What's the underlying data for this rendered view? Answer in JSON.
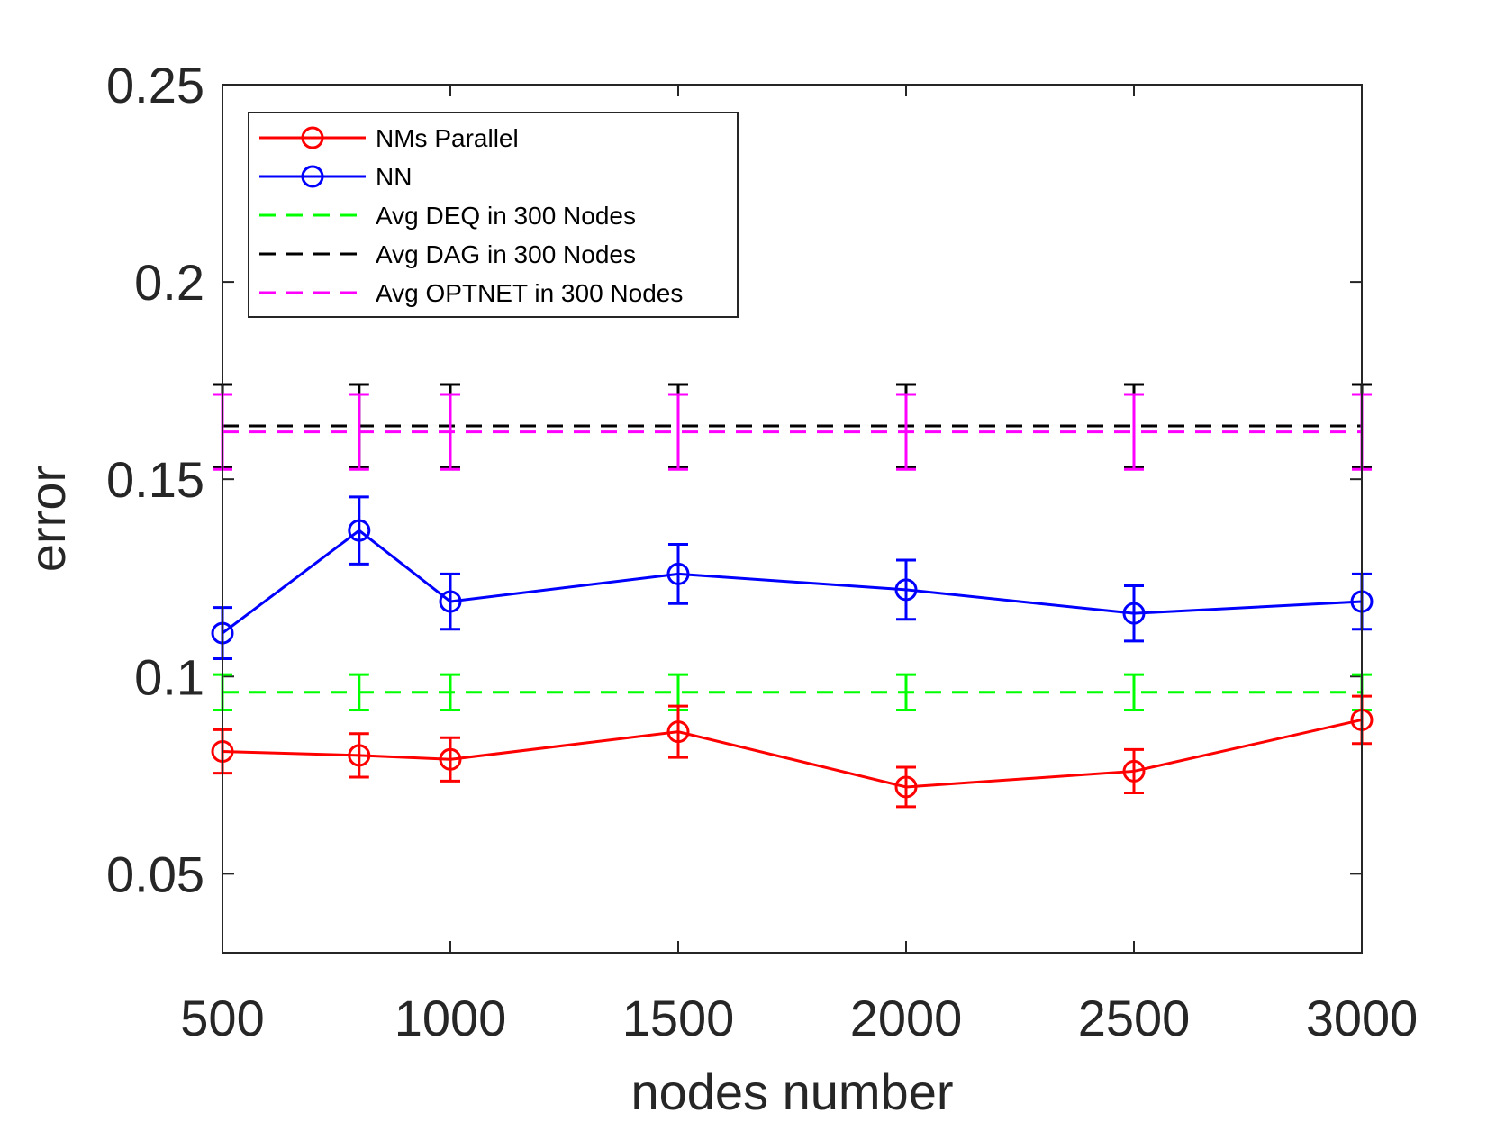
{
  "chart_data": {
    "type": "line",
    "title": "",
    "xlabel": "nodes number",
    "ylabel": "error",
    "xlim": [
      500,
      3000
    ],
    "ylim": [
      0.03,
      0.25
    ],
    "xticks": [
      500,
      1000,
      1500,
      2000,
      2500,
      3000
    ],
    "xtick_labels": [
      "500",
      "1000",
      "1500",
      "2000",
      "2500",
      "3000"
    ],
    "yticks": [
      0.05,
      0.1,
      0.15,
      0.2,
      0.25
    ],
    "ytick_labels": [
      "0.05",
      "0.1",
      "0.15",
      "0.2",
      "0.25"
    ],
    "legend_position": "top-left",
    "grid": false,
    "series": [
      {
        "name": "NMs Parallel",
        "color": "#ff0000",
        "style": "solid",
        "marker": "circle",
        "x": [
          500,
          800,
          1000,
          1500,
          2000,
          2500,
          3000
        ],
        "values": [
          0.081,
          0.08,
          0.079,
          0.086,
          0.072,
          0.076,
          0.089
        ],
        "error": [
          0.0055,
          0.0055,
          0.0055,
          0.0065,
          0.005,
          0.0055,
          0.006
        ]
      },
      {
        "name": "NN",
        "color": "#0000ff",
        "style": "solid",
        "marker": "circle",
        "x": [
          500,
          800,
          1000,
          1500,
          2000,
          2500,
          3000
        ],
        "values": [
          0.111,
          0.137,
          0.119,
          0.126,
          0.122,
          0.116,
          0.119
        ],
        "error": [
          0.0065,
          0.0085,
          0.007,
          0.0075,
          0.0075,
          0.007,
          0.007
        ]
      },
      {
        "name": "Avg DEQ in 300 Nodes",
        "color": "#00ff00",
        "style": "dashed",
        "marker": "none",
        "x": [
          500,
          800,
          1000,
          1500,
          2000,
          2500,
          3000
        ],
        "values": [
          0.096,
          0.096,
          0.096,
          0.096,
          0.096,
          0.096,
          0.096
        ],
        "error": [
          0.0045,
          0.0045,
          0.0045,
          0.0045,
          0.0045,
          0.0045,
          0.0045
        ]
      },
      {
        "name": "Avg DAG in 300 Nodes",
        "color": "#000000",
        "style": "dashed",
        "marker": "none",
        "x": [
          500,
          800,
          1000,
          1500,
          2000,
          2500,
          3000
        ],
        "values": [
          0.1635,
          0.1635,
          0.1635,
          0.1635,
          0.1635,
          0.1635,
          0.1635
        ],
        "error": [
          0.0105,
          0.0105,
          0.0105,
          0.0105,
          0.0105,
          0.0105,
          0.0105
        ]
      },
      {
        "name": "Avg OPTNET in 300 Nodes",
        "color": "#ff00ff",
        "style": "dashed",
        "marker": "none",
        "x": [
          500,
          800,
          1000,
          1500,
          2000,
          2500,
          3000
        ],
        "values": [
          0.162,
          0.162,
          0.162,
          0.162,
          0.162,
          0.162,
          0.162
        ],
        "error": [
          0.0095,
          0.0095,
          0.0095,
          0.0095,
          0.0095,
          0.0095,
          0.0095
        ]
      }
    ]
  }
}
